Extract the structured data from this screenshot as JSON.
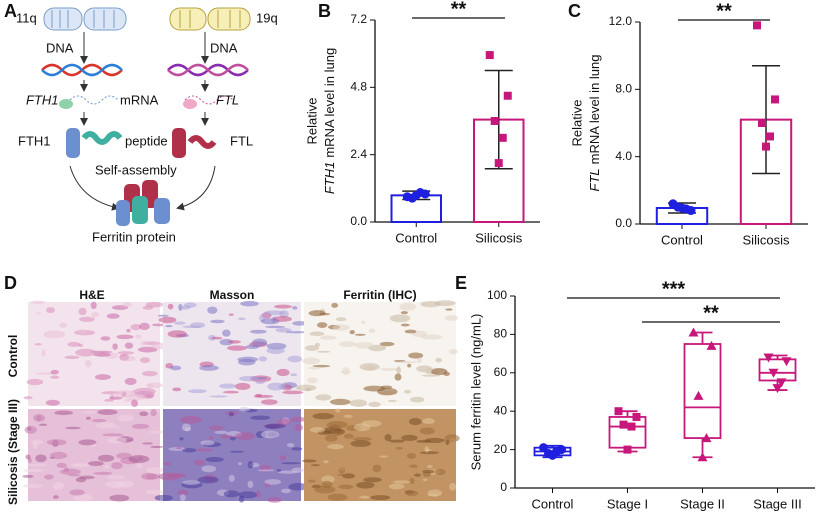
{
  "panel_letters": [
    "A",
    "B",
    "C",
    "D",
    "E"
  ],
  "panel_a": {
    "chrom_left": "11q",
    "chrom_right": "19q",
    "dna_left": "DNA",
    "dna_right": "DNA",
    "gene_left": "FTH1",
    "mrna": "mRNA",
    "gene_right": "FTL",
    "protein_left": "FTH1",
    "peptide": "peptide",
    "protein_right": "FTL",
    "assembly": "Self-assembly",
    "product": "Ferritin protein"
  },
  "panel_d": {
    "columns": [
      "H&E",
      "Masson",
      "Ferritin (IHC)"
    ],
    "rows": [
      "Control",
      "Silicosis (Stage III)"
    ]
  },
  "chart_data": [
    {
      "type": "bar",
      "ylabel": {
        "line1": "Relative",
        "gene": "FTH1",
        "line2": "mRNA level in lung"
      },
      "ylim": [
        0,
        7.2
      ],
      "yticks": [
        {
          "value": 0,
          "label": "0.0"
        },
        2.4,
        4.8,
        7.2
      ],
      "series": [
        {
          "name": "Control",
          "color": "#1f1fe0",
          "marker": "circle",
          "mean": 0.95,
          "sd": 0.15,
          "points": [
            0.9,
            1.0,
            0.85,
            1.05,
            0.95
          ]
        },
        {
          "name": "Silicosis",
          "color": "#c8177a",
          "marker": "square",
          "mean": 3.65,
          "sd": 1.75,
          "points": [
            5.95,
            4.5,
            3.6,
            3.0,
            2.1
          ]
        }
      ],
      "significance": [
        {
          "label": "**"
        }
      ]
    },
    {
      "type": "bar",
      "ylabel": {
        "line1": "Relative",
        "gene": "FTL",
        "line2": "mRNA level  in lung"
      },
      "ylim": [
        0,
        12
      ],
      "yticks": [
        {
          "value": 0,
          "label": "0.0"
        },
        {
          "value": 4,
          "label": "4.0"
        },
        {
          "value": 8,
          "label": "8.0"
        },
        {
          "value": 12,
          "label": "12.0"
        }
      ],
      "series": [
        {
          "name": "Control",
          "color": "#1f1fe0",
          "marker": "circle",
          "mean": 0.95,
          "sd": 0.3,
          "points": [
            1.2,
            0.8,
            1.0,
            0.9,
            0.95
          ]
        },
        {
          "name": "Silicosis",
          "color": "#c8177a",
          "marker": "square",
          "mean": 6.2,
          "sd": 3.2,
          "points": [
            11.8,
            7.4,
            6.0,
            5.2,
            4.6
          ]
        }
      ],
      "significance": [
        {
          "label": "**"
        }
      ]
    },
    {
      "type": "box",
      "ylabel": "Serum ferritin level (ng/mL)",
      "ylim": [
        0,
        100
      ],
      "yticks": [
        0,
        20,
        40,
        60,
        80,
        100
      ],
      "series": [
        {
          "name": "Control",
          "color": "#1f1fe0",
          "marker": "circle",
          "min": 16,
          "q1": 17,
          "median": 19,
          "q3": 21,
          "max": 22,
          "points": [
            21,
            20,
            18,
            19,
            17
          ]
        },
        {
          "name": "Stage I",
          "color": "#c8177a",
          "marker": "square",
          "min": 19,
          "q1": 21,
          "median": 32,
          "q3": 37,
          "max": 40,
          "points": [
            40,
            37,
            33,
            32,
            20
          ]
        },
        {
          "name": "Stage II",
          "color": "#c8177a",
          "marker": "triangle",
          "min": 16,
          "q1": 26,
          "median": 42,
          "q3": 75,
          "max": 81,
          "points": [
            81,
            74,
            48,
            26,
            16
          ]
        },
        {
          "name": "Stage III",
          "color": "#c8177a",
          "marker": "triangle-down",
          "min": 51,
          "q1": 56,
          "median": 60,
          "q3": 67,
          "max": 69,
          "points": [
            68,
            66,
            60,
            55,
            52
          ]
        }
      ],
      "significance": [
        {
          "label": "***"
        },
        {
          "label": "**"
        }
      ]
    }
  ]
}
